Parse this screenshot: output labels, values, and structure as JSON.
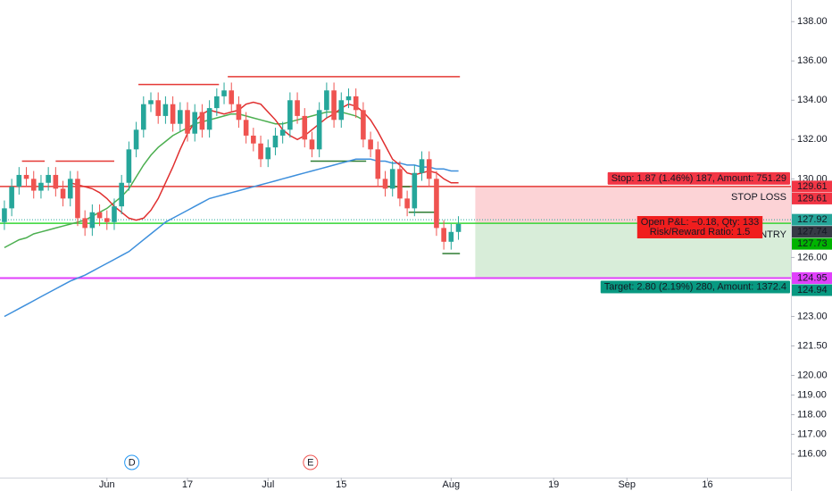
{
  "chart_data": {
    "type": "candlestick",
    "xlim": [
      -0.6,
      107.4
    ],
    "xticks": [
      {
        "value": 14,
        "label": "Jun"
      },
      {
        "value": 25,
        "label": "17"
      },
      {
        "value": 36,
        "label": "Jul"
      },
      {
        "value": 46,
        "label": "15"
      },
      {
        "value": 61,
        "label": "Aug"
      },
      {
        "value": 75,
        "label": "19"
      },
      {
        "value": 85,
        "label": "Sep"
      },
      {
        "value": 96,
        "label": "16"
      }
    ],
    "ylim": [
      114.8,
      139.1
    ],
    "yticks": [
      {
        "value": 138,
        "label": "138.00"
      },
      {
        "value": 136,
        "label": "136.00"
      },
      {
        "value": 134,
        "label": "134.00"
      },
      {
        "value": 132,
        "label": "132.00"
      },
      {
        "value": 130,
        "label": "130.00"
      },
      {
        "value": 126,
        "label": "126.00"
      },
      {
        "value": 123,
        "label": "123.00"
      },
      {
        "value": 121.5,
        "label": "121.50"
      },
      {
        "value": 120,
        "label": "120.00"
      },
      {
        "value": 119,
        "label": "119.00"
      },
      {
        "value": 118,
        "label": "118.00"
      },
      {
        "value": 117,
        "label": "117.00"
      },
      {
        "value": 116,
        "label": "116.00"
      }
    ],
    "up_color": "#26a69a",
    "down_color": "#ef5350",
    "open": [
      127.8,
      128.5,
      129.6,
      130.2,
      130.0,
      129.4,
      129.8,
      130.2,
      129.5,
      129.0,
      130.0,
      128.0,
      127.5,
      128.3,
      128.0,
      127.8,
      128.6,
      129.8,
      131.5,
      132.5,
      133.8,
      134.0,
      133.2,
      133.8,
      132.8,
      133.5,
      132.3,
      133.4,
      132.5,
      133.6,
      134.2,
      134.5,
      133.8,
      133.0,
      132.2,
      131.8,
      131.0,
      131.6,
      132.2,
      132.5,
      134.0,
      133.2,
      132.0,
      131.5,
      133.5,
      134.5,
      133.0,
      134.0,
      134.2,
      133.5,
      132.0,
      131.5,
      130.0,
      129.5,
      130.5,
      129.0,
      128.5,
      130.3,
      131.0,
      130.0,
      127.5,
      126.8,
      127.3
    ],
    "high": [
      128.9,
      130.0,
      130.6,
      130.6,
      130.4,
      130.2,
      130.6,
      130.6,
      129.9,
      130.4,
      130.4,
      128.4,
      128.7,
      128.7,
      128.4,
      129.0,
      130.2,
      131.9,
      132.9,
      134.2,
      134.4,
      134.4,
      134.2,
      134.2,
      133.9,
      133.9,
      133.8,
      133.8,
      134.0,
      134.6,
      134.9,
      134.9,
      134.2,
      133.4,
      132.6,
      132.2,
      132.0,
      132.6,
      132.9,
      134.4,
      134.4,
      133.6,
      132.4,
      133.9,
      134.9,
      134.9,
      134.4,
      134.6,
      134.6,
      133.9,
      132.4,
      131.9,
      130.4,
      130.9,
      130.9,
      129.4,
      130.7,
      131.4,
      131.4,
      130.4,
      127.9,
      127.7,
      128.1
    ],
    "low": [
      127.4,
      128.1,
      129.2,
      129.6,
      129.0,
      129.0,
      129.4,
      129.1,
      128.6,
      128.6,
      127.6,
      127.1,
      127.1,
      127.6,
      127.4,
      127.4,
      128.2,
      129.4,
      131.1,
      132.1,
      133.4,
      132.8,
      132.8,
      132.4,
      132.4,
      131.9,
      131.9,
      132.1,
      132.1,
      133.2,
      133.8,
      133.4,
      132.6,
      131.8,
      131.4,
      130.6,
      130.6,
      131.2,
      131.8,
      132.1,
      132.8,
      131.6,
      131.1,
      131.1,
      133.1,
      132.6,
      132.6,
      133.6,
      133.1,
      131.6,
      131.1,
      129.6,
      129.1,
      129.1,
      128.6,
      128.1,
      128.1,
      129.9,
      129.6,
      127.1,
      126.4,
      126.4,
      126.9
    ],
    "close": [
      128.5,
      129.6,
      130.2,
      130.0,
      129.4,
      129.8,
      130.2,
      129.5,
      129.0,
      130.0,
      128.0,
      127.5,
      128.3,
      128.0,
      127.8,
      128.6,
      129.8,
      131.5,
      132.5,
      133.8,
      134.0,
      133.2,
      133.8,
      132.8,
      133.5,
      132.3,
      133.4,
      132.5,
      133.6,
      134.2,
      134.5,
      133.8,
      133.0,
      132.2,
      131.8,
      131.0,
      131.6,
      132.2,
      132.5,
      134.0,
      133.2,
      132.0,
      131.5,
      133.5,
      134.5,
      133.0,
      134.0,
      134.2,
      133.5,
      132.0,
      131.5,
      130.0,
      129.5,
      130.5,
      129.0,
      128.5,
      130.3,
      131.0,
      130.0,
      127.5,
      126.8,
      127.3,
      127.7
    ],
    "series": [
      {
        "color": "#3d8fdc",
        "values": [
          123.0,
          123.2,
          123.4,
          123.6,
          123.8,
          124.0,
          124.2,
          124.4,
          124.6,
          124.8,
          124.95,
          125.1,
          125.3,
          125.5,
          125.7,
          125.9,
          126.1,
          126.3,
          126.6,
          126.9,
          127.2,
          127.5,
          127.8,
          128.0,
          128.2,
          128.4,
          128.6,
          128.8,
          129.0,
          129.1,
          129.2,
          129.3,
          129.4,
          129.5,
          129.6,
          129.7,
          129.8,
          129.9,
          130.0,
          130.1,
          130.2,
          130.3,
          130.4,
          130.5,
          130.6,
          130.7,
          130.8,
          130.9,
          131.0,
          131.0,
          131.0,
          130.9,
          130.9,
          130.8,
          130.8,
          130.7,
          130.7,
          130.6,
          130.6,
          130.5,
          130.5,
          130.4,
          130.4
        ]
      },
      {
        "color": "#4caf50",
        "values": [
          126.5,
          126.7,
          126.9,
          127.0,
          127.2,
          127.3,
          127.4,
          127.5,
          127.6,
          127.7,
          127.8,
          127.9,
          128.1,
          128.3,
          128.5,
          128.8,
          129.1,
          129.5,
          130.1,
          130.7,
          131.2,
          131.6,
          131.9,
          132.2,
          132.4,
          132.6,
          132.8,
          132.9,
          133.0,
          133.1,
          133.2,
          133.3,
          133.3,
          133.2,
          133.1,
          133.0,
          132.9,
          132.8,
          132.8,
          132.9,
          133.0,
          133.1,
          133.2,
          133.3,
          133.4,
          133.4,
          133.4,
          133.3,
          133.2,
          133.0,
          null,
          null,
          null,
          null,
          null,
          null,
          null,
          null,
          null,
          null,
          null,
          null,
          null
        ]
      },
      {
        "color": "#e02f2f",
        "values": [
          null,
          null,
          null,
          null,
          null,
          null,
          null,
          null,
          null,
          129.8,
          129.7,
          129.6,
          129.5,
          129.3,
          129.0,
          128.6,
          128.3,
          128.0,
          127.9,
          128.0,
          128.4,
          129.0,
          129.8,
          130.6,
          131.5,
          132.3,
          132.9,
          133.3,
          133.5,
          133.4,
          133.3,
          133.4,
          133.5,
          133.8,
          133.9,
          133.8,
          133.4,
          133.0,
          132.5,
          132.2,
          132.0,
          132.2,
          132.5,
          132.8,
          133.1,
          133.3,
          133.6,
          133.8,
          133.7,
          133.4,
          133.0,
          132.4,
          131.7,
          131.0,
          130.7,
          130.3,
          130.2,
          130.3,
          130.4,
          130.3,
          130.0,
          129.8,
          129.8
        ]
      }
    ],
    "levels": [
      {
        "color": "#e53935",
        "value": 135.2,
        "x": [
          30.5,
          62.2
        ]
      },
      {
        "color": "#e53935",
        "value": 134.8,
        "x": [
          18.3,
          29.3
        ]
      },
      {
        "color": "#e53935",
        "value": 130.9,
        "x": [
          2.4,
          5.5
        ]
      },
      {
        "color": "#e53935",
        "value": 130.9,
        "x": [
          7.0,
          15.0
        ]
      },
      {
        "color": "#2e7d32",
        "value": 130.9,
        "x": [
          41.8,
          49.4
        ]
      },
      {
        "color": "#2e7d32",
        "value": 129.6,
        "x": [
          51.8,
          55.4
        ]
      },
      {
        "color": "#2e7d32",
        "value": 128.3,
        "x": [
          55.2,
          58.9
        ]
      },
      {
        "color": "#2e7d32",
        "value": 126.2,
        "x": [
          59.8,
          62.2
        ]
      }
    ],
    "current_price": 127.92,
    "position": {
      "stop": 129.61,
      "entry": 127.74,
      "target": 124.95,
      "x_start": 64.3,
      "stop_label": "Stop: 1.87 (1.46%) 187, Amount: 751.29",
      "stop_text": "STOP LOSS",
      "entry_text": "ENTRY",
      "pnl_label": "Open P&L: −0.18, Qty: 133",
      "rr_label": "Risk/Reward Ratio: 1.5",
      "target_label": "Target: 2.80 (2.19%) 280, Amount: 1372.4"
    },
    "price_tags": [
      {
        "value": 129.61,
        "color": "#f23645"
      },
      {
        "value": 129.61,
        "color": "#f23645"
      },
      {
        "value": 127.92,
        "color": "#26a69a"
      },
      {
        "value": 127.74,
        "color": "#363a45"
      },
      {
        "value": 127.73,
        "color": "#00b300"
      },
      {
        "value": 124.95,
        "color": "#e040fb"
      },
      {
        "value": 124.94,
        "color": "#089981"
      }
    ],
    "events": [
      {
        "x": 17.4,
        "label": "D",
        "color": "#2196f3"
      },
      {
        "x": 41.8,
        "label": "E",
        "color": "#ef5350"
      }
    ]
  }
}
